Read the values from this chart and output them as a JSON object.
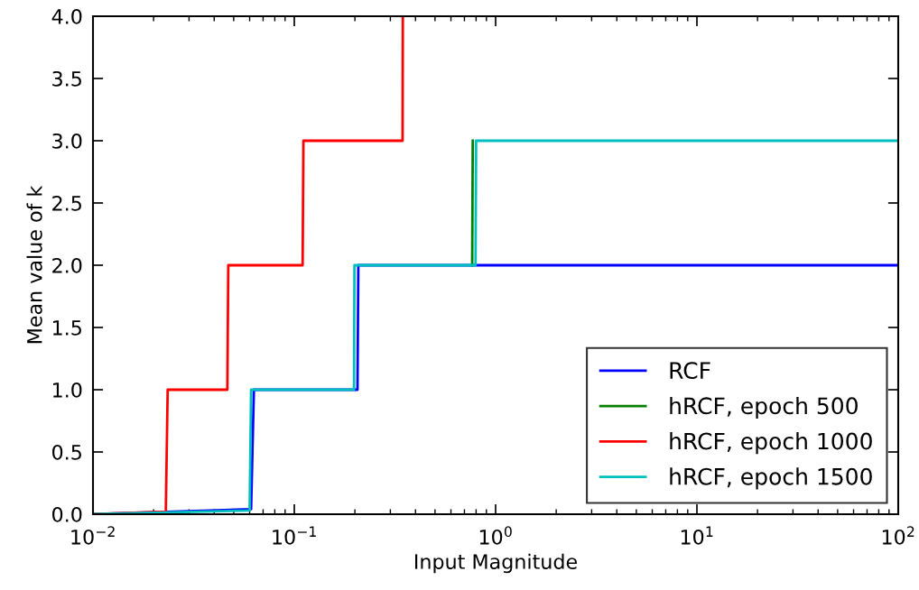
{
  "chart_data": {
    "type": "line",
    "xlabel": "Input Magnitude",
    "ylabel": "Mean value of k",
    "log": "x",
    "xlim": [
      0.01,
      100
    ],
    "ylim": [
      0,
      4.0
    ],
    "xticks": [
      {
        "value": 0.01,
        "label": "10$^{−2}$"
      },
      {
        "value": 0.1,
        "label": "10$^{−1}$"
      },
      {
        "value": 1,
        "label": "10$^{0}$"
      },
      {
        "value": 10,
        "label": "10$^{1}$"
      },
      {
        "value": 100,
        "label": "10$^{2}$"
      }
    ],
    "yticks": [
      {
        "value": 0,
        "label": "0.0"
      },
      {
        "value": 0.5,
        "label": "0.5"
      },
      {
        "value": 1,
        "label": "1.0"
      },
      {
        "value": 1.5,
        "label": "1.5"
      },
      {
        "value": 2,
        "label": "2.0"
      },
      {
        "value": 2.5,
        "label": "2.5"
      },
      {
        "value": 3,
        "label": "3.0"
      },
      {
        "value": 3.5,
        "label": "3.5"
      },
      {
        "value": 4,
        "label": "4.0"
      }
    ],
    "grid": false,
    "legend": "bottom right",
    "line_style": "solid",
    "marker": "none",
    "series": [
      {
        "name": "RCF",
        "color": "#0000ff",
        "x": [
          0.01,
          0.061,
          0.063,
          0.206,
          0.208,
          100
        ],
        "values": [
          0.0,
          0.04,
          1.0,
          1.0,
          2.0,
          2.0
        ]
      },
      {
        "name": "hRCF, epoch 500",
        "color": "#008000",
        "x": [
          0.765,
          0.77
        ],
        "values": [
          2.0,
          3.0
        ]
      },
      {
        "name": "hRCF, epoch 1000",
        "color": "#ff0000",
        "x": [
          0.01,
          0.023,
          0.0235,
          0.0465,
          0.047,
          0.11,
          0.111,
          0.345,
          0.346
        ],
        "values": [
          0.0,
          0.02,
          1.0,
          1.0,
          2.0,
          2.0,
          3.0,
          3.0,
          4.0
        ]
      },
      {
        "name": "hRCF, epoch 1500",
        "color": "#00bfbf",
        "x": [
          0.01,
          0.06,
          0.061,
          0.198,
          0.199,
          0.795,
          0.8,
          100
        ],
        "values": [
          0.0,
          0.03,
          1.0,
          1.0,
          2.0,
          2.0,
          3.0,
          3.0
        ]
      }
    ]
  }
}
